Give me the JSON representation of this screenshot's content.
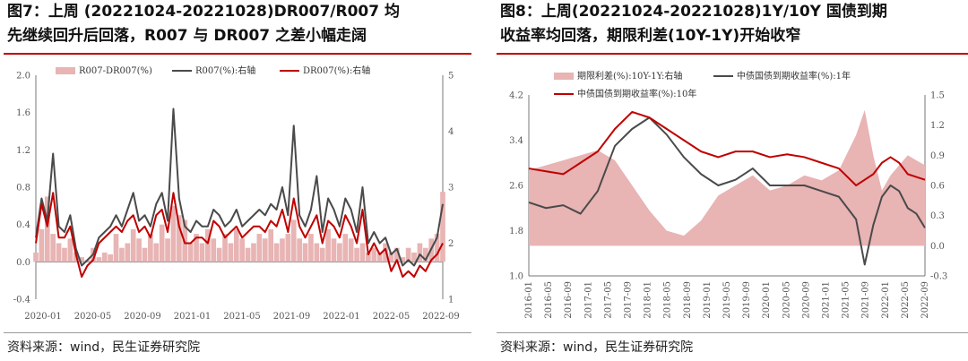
{
  "charts": [
    {
      "title_line1": "图7：上周 (20221024-20221028)DR007/R007  均",
      "title_line2": "先继续回升后回落，R007 与 DR007 之差小幅走阔",
      "source": "资料来源：wind，民生证券研究院"
    },
    {
      "title_line1": "图8：上周(20221024-20221028)1Y/10Y  国债到期",
      "title_line2": "收益率均回落，期限利差(10Y-1Y)开始收窄",
      "source": "资料来源：wind，民生证券研究院"
    }
  ],
  "colors": {
    "spread_fill": "#e8b4b4",
    "gray_line": "#4a4a4a",
    "red_line": "#c00000",
    "axis": "#777777"
  },
  "chart_data": [
    {
      "type": "line",
      "x_tick_labels": [
        "2020-01",
        "2020-05",
        "2020-09",
        "2021-01",
        "2021-05",
        "2021-09",
        "2022-01",
        "2022-05",
        "2022-09"
      ],
      "left_axis": {
        "ticks": [
          "2.0",
          "1.6",
          "1.2",
          "0.8",
          "0.4",
          "0.0",
          "-0.4"
        ],
        "ylim": [
          -0.4,
          2.0
        ]
      },
      "right_axis": {
        "ticks": [
          "5",
          "4",
          "3",
          "2",
          "1"
        ],
        "ylim": [
          1,
          5
        ]
      },
      "grid": false,
      "legend_position": "top",
      "series": [
        {
          "name": "R007-DR007(%)",
          "kind": "bar",
          "axis": "left",
          "color_key": "spread_fill",
          "x": [
            0,
            0.5,
            1,
            1.5,
            2,
            2.5,
            3,
            3.5,
            4,
            4.5,
            5,
            5.5,
            6,
            6.5,
            7,
            7.5,
            8,
            8.5,
            9,
            9.5,
            10,
            10.5,
            11,
            11.5,
            12,
            12.5,
            13,
            13.5,
            14,
            14.5,
            15,
            15.5,
            16,
            16.5,
            17,
            17.5,
            18,
            18.5,
            19,
            19.5,
            20,
            20.5,
            21,
            21.5,
            22,
            22.5,
            23,
            23.5,
            24,
            24.5,
            25,
            25.5,
            26,
            26.5,
            27,
            27.5,
            28,
            28.5,
            29,
            29.5,
            30,
            30.5,
            31,
            31.5,
            32,
            32.5,
            33,
            33.5,
            34,
            34.5,
            35,
            35.5
          ],
          "values": [
            0.1,
            0.35,
            0.7,
            0.3,
            0.2,
            0.15,
            0.25,
            0.1,
            0.05,
            0.02,
            0.15,
            0.05,
            0.1,
            0.08,
            0.3,
            0.15,
            0.2,
            0.35,
            0.25,
            0.15,
            0.3,
            0.2,
            0.4,
            0.25,
            0.6,
            0.5,
            0.45,
            0.2,
            0.3,
            0.2,
            0.35,
            0.25,
            0.15,
            0.3,
            0.2,
            0.35,
            0.25,
            0.15,
            0.2,
            0.3,
            0.25,
            0.35,
            0.2,
            0.25,
            0.3,
            0.45,
            0.25,
            0.2,
            0.3,
            0.2,
            0.15,
            0.35,
            0.25,
            0.2,
            0.3,
            0.25,
            0.15,
            0.2,
            0.1,
            0.15,
            0.1,
            0.2,
            0.1,
            0.15,
            0.05,
            0.15,
            0.1,
            0.2,
            0.15,
            0.25,
            0.3,
            0.75
          ]
        },
        {
          "name": "R007(%):右轴",
          "kind": "line",
          "axis": "right",
          "color_key": "gray_line",
          "x": [
            0,
            0.5,
            1,
            1.5,
            2,
            2.5,
            3,
            3.5,
            4,
            4.5,
            5,
            5.5,
            6,
            6.5,
            7,
            7.5,
            8,
            8.5,
            9,
            9.5,
            10,
            10.5,
            11,
            11.5,
            12,
            12.5,
            13,
            13.5,
            14,
            14.5,
            15,
            15.5,
            16,
            16.5,
            17,
            17.5,
            18,
            18.5,
            19,
            19.5,
            20,
            20.5,
            21,
            21.5,
            22,
            22.5,
            23,
            23.5,
            24,
            24.5,
            25,
            25.5,
            26,
            26.5,
            27,
            27.5,
            28,
            28.5,
            29,
            29.5,
            30,
            30.5,
            31,
            31.5,
            32,
            32.5,
            33,
            33.5,
            34,
            34.5,
            35,
            35.5
          ],
          "values": [
            2.1,
            2.8,
            2.4,
            3.6,
            2.3,
            2.2,
            2.5,
            1.9,
            1.6,
            1.7,
            1.8,
            2.1,
            2.2,
            2.3,
            2.5,
            2.3,
            2.6,
            2.9,
            2.4,
            2.5,
            2.3,
            2.7,
            2.9,
            2.4,
            4.4,
            2.8,
            2.3,
            2.2,
            2.4,
            2.3,
            2.3,
            2.6,
            2.5,
            2.3,
            2.4,
            2.6,
            2.3,
            2.4,
            2.5,
            2.6,
            2.5,
            2.7,
            2.6,
            3.0,
            2.5,
            4.1,
            2.5,
            2.3,
            2.6,
            3.2,
            2.2,
            2.8,
            2.6,
            2.3,
            2.8,
            2.6,
            2.2,
            3.0,
            2.0,
            2.2,
            2.0,
            2.1,
            1.8,
            1.9,
            1.6,
            1.7,
            1.6,
            1.8,
            1.7,
            1.9,
            2.1,
            2.7
          ]
        },
        {
          "name": "DR007(%):右轴",
          "kind": "line",
          "axis": "right",
          "color_key": "red_line",
          "x": [
            0,
            0.5,
            1,
            1.5,
            2,
            2.5,
            3,
            3.5,
            4,
            4.5,
            5,
            5.5,
            6,
            6.5,
            7,
            7.5,
            8,
            8.5,
            9,
            9.5,
            10,
            10.5,
            11,
            11.5,
            12,
            12.5,
            13,
            13.5,
            14,
            14.5,
            15,
            15.5,
            16,
            16.5,
            17,
            17.5,
            18,
            18.5,
            19,
            19.5,
            20,
            20.5,
            21,
            21.5,
            22,
            22.5,
            23,
            23.5,
            24,
            24.5,
            25,
            25.5,
            26,
            26.5,
            27,
            27.5,
            28,
            28.5,
            29,
            29.5,
            30,
            30.5,
            31,
            31.5,
            32,
            32.5,
            33,
            33.5,
            34,
            34.5,
            35,
            35.5
          ],
          "values": [
            2.0,
            2.7,
            2.3,
            2.9,
            2.1,
            2.1,
            2.3,
            1.8,
            1.4,
            1.6,
            1.7,
            2.0,
            2.1,
            2.2,
            2.3,
            2.2,
            2.4,
            2.5,
            2.2,
            2.3,
            2.1,
            2.5,
            2.6,
            2.2,
            2.9,
            2.3,
            2.0,
            2.0,
            2.1,
            2.1,
            2.0,
            2.4,
            2.3,
            2.1,
            2.2,
            2.3,
            2.1,
            2.2,
            2.3,
            2.3,
            2.2,
            2.4,
            2.3,
            2.6,
            2.2,
            2.8,
            2.3,
            2.1,
            2.3,
            2.5,
            2.0,
            2.4,
            2.3,
            2.1,
            2.5,
            2.3,
            2.0,
            2.6,
            1.8,
            2.0,
            1.8,
            1.9,
            1.5,
            1.7,
            1.4,
            1.5,
            1.4,
            1.6,
            1.5,
            1.7,
            1.8,
            2.0
          ]
        }
      ]
    },
    {
      "type": "line",
      "x_tick_labels": [
        "2016-01",
        "2016-05",
        "2016-09",
        "2017-01",
        "2017-05",
        "2017-09",
        "2018-01",
        "2018-05",
        "2018-09",
        "2019-01",
        "2019-05",
        "2019-09",
        "2020-01",
        "2020-05",
        "2020-09",
        "2021-01",
        "2021-05",
        "2021-09",
        "2022-01",
        "2022-05",
        "2022-09"
      ],
      "left_axis": {
        "ticks": [
          "4.2",
          "3.4",
          "2.6",
          "1.8",
          "1.0"
        ],
        "ylim": [
          1.0,
          4.2
        ]
      },
      "right_axis": {
        "ticks": [
          "1.5",
          "1.2",
          "0.9",
          "0.6",
          "0.3",
          "0.0",
          "-0.3"
        ],
        "ylim": [
          -0.3,
          1.5
        ]
      },
      "grid": false,
      "legend_position": "top",
      "series": [
        {
          "name": "期限利差(%):10Y-1Y:右轴",
          "kind": "area",
          "axis": "right",
          "color_key": "spread_fill",
          "x": [
            0,
            1,
            2,
            3,
            4,
            5,
            6,
            7,
            8,
            9,
            10,
            11,
            12,
            13,
            14,
            15,
            16,
            17,
            18,
            19,
            19.5,
            20,
            20.5,
            21,
            21.5,
            22,
            22.5,
            23
          ],
          "values": [
            0.75,
            0.8,
            0.85,
            0.9,
            0.95,
            0.85,
            0.6,
            0.35,
            0.15,
            0.1,
            0.25,
            0.5,
            0.6,
            0.7,
            0.55,
            0.6,
            0.7,
            0.65,
            0.75,
            1.1,
            1.35,
            0.9,
            0.55,
            0.7,
            0.8,
            0.9,
            0.85,
            0.8
          ]
        },
        {
          "name": "中债国债到期收益率(%):1年",
          "kind": "line",
          "axis": "left",
          "color_key": "gray_line",
          "x": [
            0,
            1,
            2,
            3,
            4,
            5,
            6,
            7,
            8,
            9,
            10,
            11,
            12,
            13,
            14,
            15,
            16,
            17,
            18,
            19,
            19.5,
            20,
            20.5,
            21,
            21.5,
            22,
            22.5,
            23
          ],
          "values": [
            2.3,
            2.2,
            2.25,
            2.1,
            2.5,
            3.3,
            3.6,
            3.8,
            3.5,
            3.1,
            2.8,
            2.6,
            2.7,
            2.9,
            2.6,
            2.6,
            2.6,
            2.5,
            2.4,
            2.0,
            1.2,
            1.9,
            2.4,
            2.6,
            2.5,
            2.2,
            2.1,
            1.85
          ]
        },
        {
          "name": "中债国债到期收益率(%):10年",
          "kind": "line",
          "axis": "left",
          "color_key": "red_line",
          "x": [
            0,
            1,
            2,
            3,
            4,
            5,
            6,
            7,
            8,
            9,
            10,
            11,
            12,
            13,
            14,
            15,
            16,
            17,
            18,
            19,
            19.5,
            20,
            20.5,
            21,
            21.5,
            22,
            22.5,
            23
          ],
          "values": [
            2.9,
            2.85,
            2.8,
            3.0,
            3.2,
            3.6,
            3.9,
            3.8,
            3.6,
            3.4,
            3.2,
            3.1,
            3.2,
            3.2,
            3.1,
            3.15,
            3.1,
            3.0,
            2.9,
            2.6,
            2.7,
            2.8,
            3.0,
            3.1,
            3.0,
            2.8,
            2.75,
            2.7
          ]
        }
      ]
    }
  ]
}
